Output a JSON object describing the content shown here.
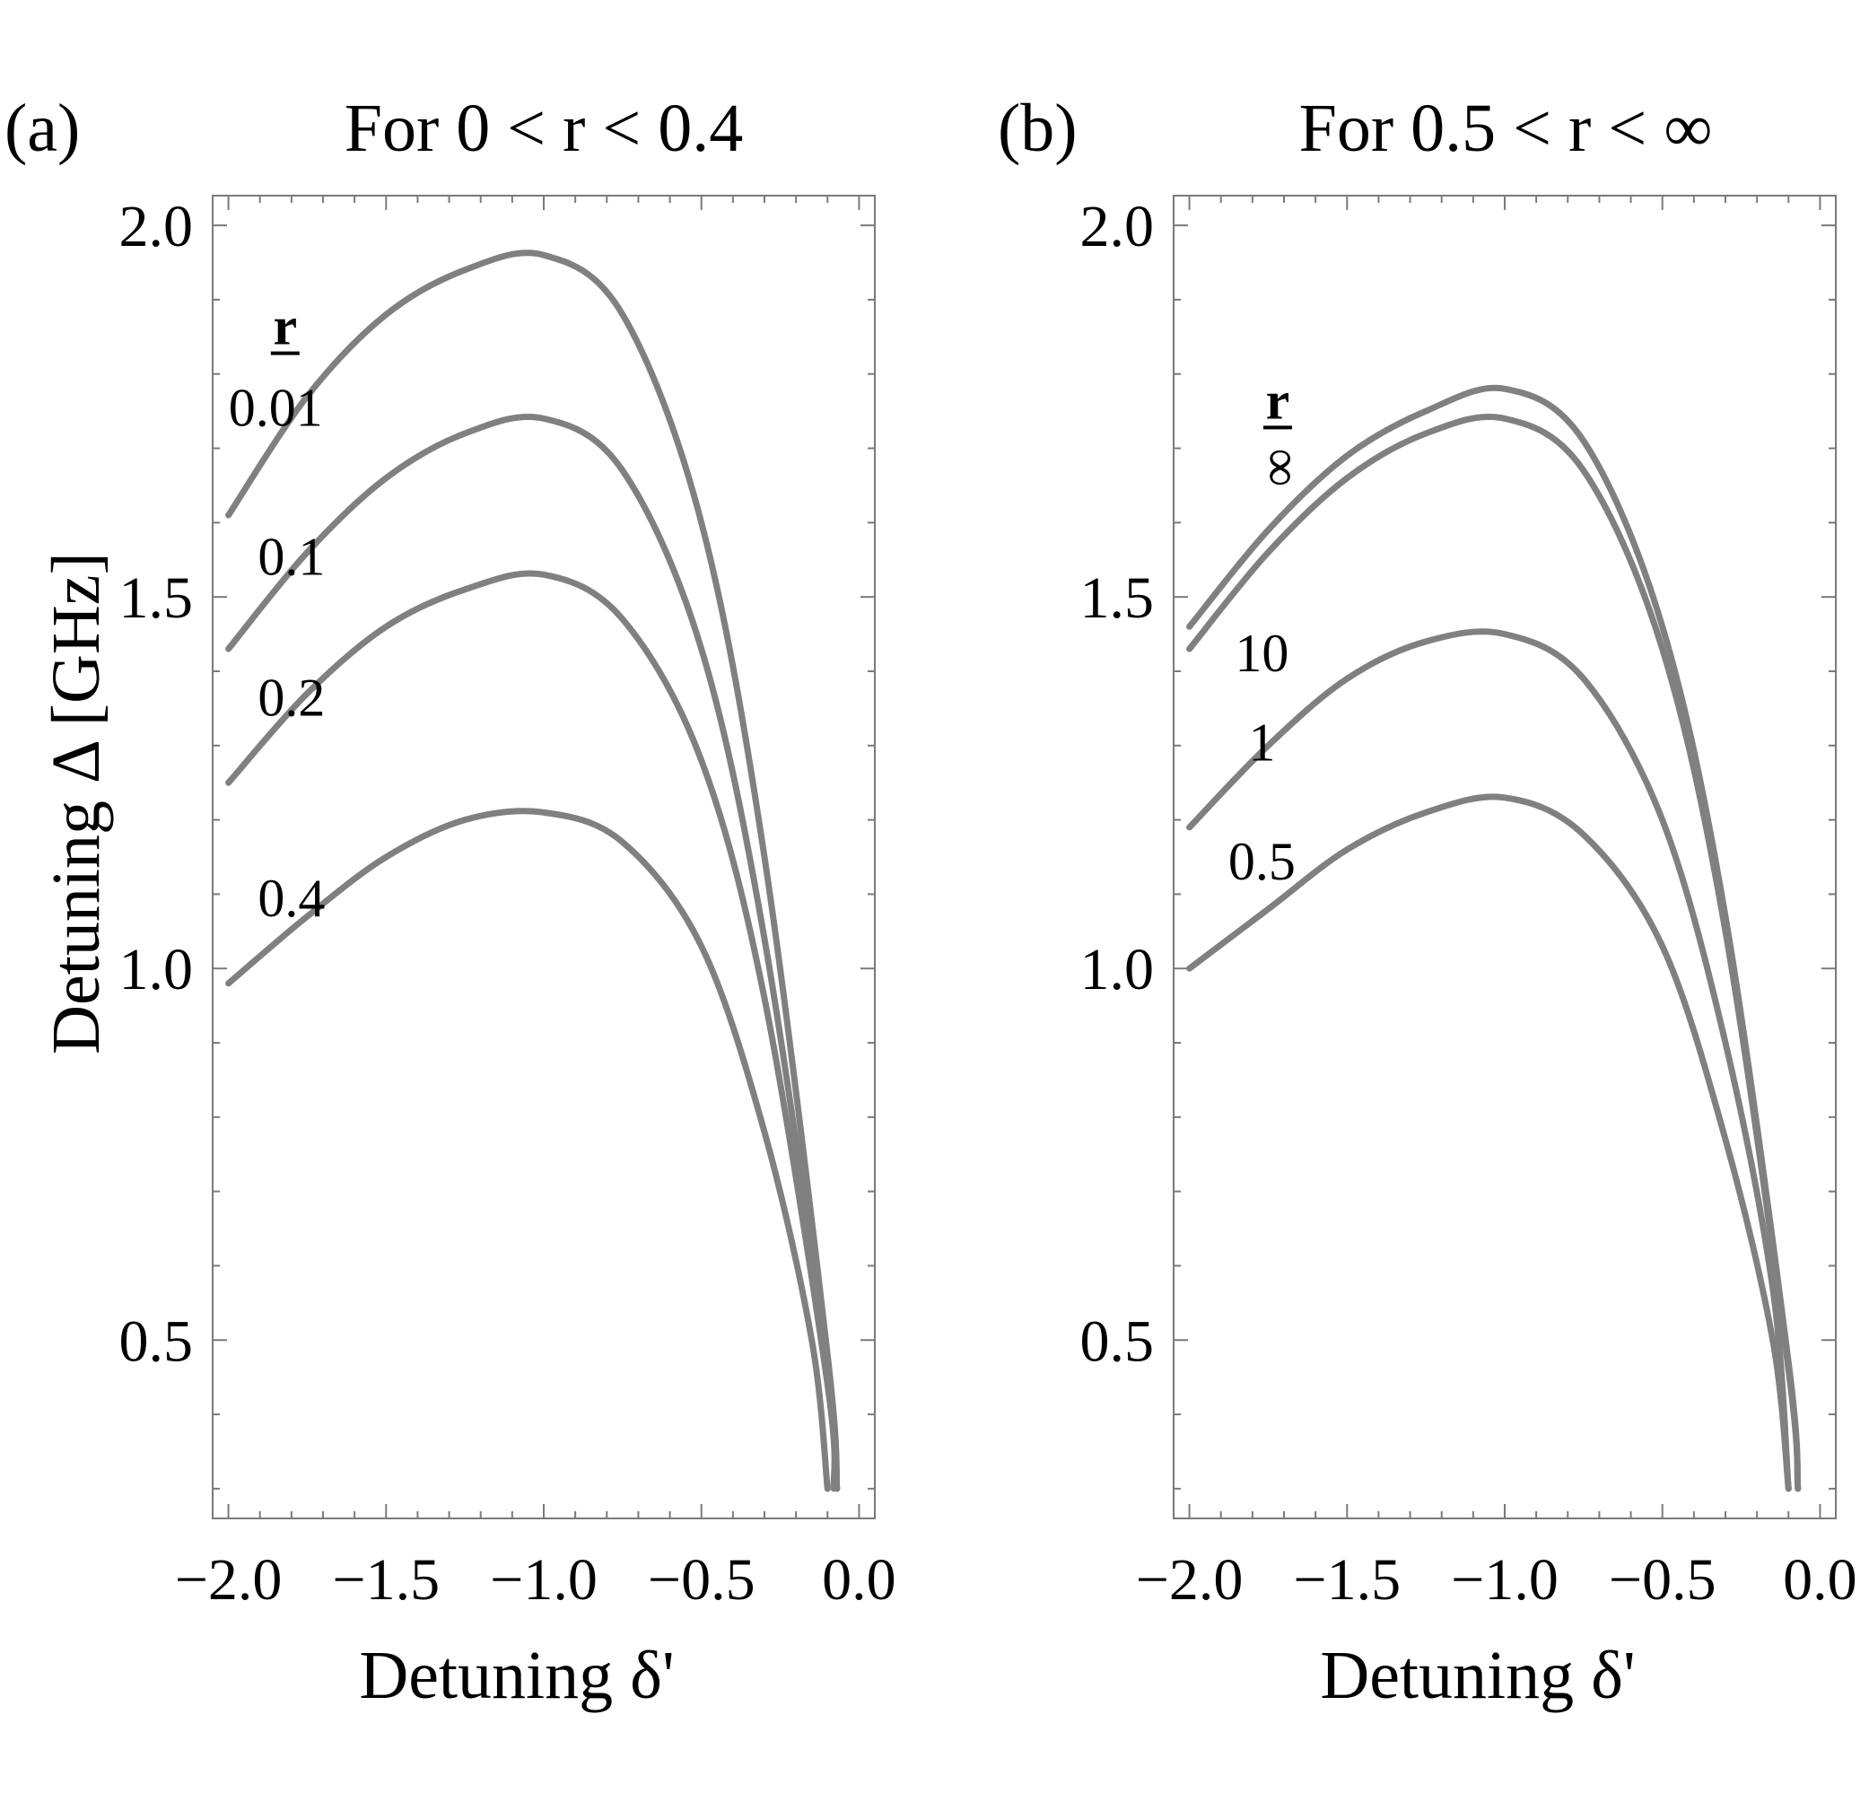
{
  "chart_data": [
    {
      "type": "line",
      "panel_label": "(a)",
      "title": "For 0 < r < 0.4",
      "xlabel": "Detuning δ'",
      "ylabel": "Detuning  Δ [GHz]",
      "xlim": [
        -2.05,
        0.05
      ],
      "ylim": [
        0.26,
        2.04
      ],
      "x_ticks": [
        -2.0,
        -1.5,
        -1.0,
        -0.5,
        0.0
      ],
      "x_tick_labels": [
        "−2.0",
        "−1.5",
        "−1.0",
        "−0.5",
        "0.0"
      ],
      "y_ticks": [
        0.5,
        1.0,
        1.5,
        2.0
      ],
      "y_tick_labels": [
        "0.5",
        "1.0",
        "1.5",
        "2.0"
      ],
      "legend_heading": "r",
      "series": [
        {
          "name": "0.01",
          "color": "#808080",
          "x": [
            -2.0,
            -1.75,
            -1.5,
            -1.25,
            -1.0,
            -0.75,
            -0.5,
            -0.3,
            -0.1,
            -0.07
          ],
          "y": [
            1.61,
            1.77,
            1.88,
            1.94,
            1.96,
            1.88,
            1.6,
            1.15,
            0.48,
            0.3
          ]
        },
        {
          "name": "0.1",
          "color": "#808080",
          "x": [
            -2.0,
            -1.75,
            -1.5,
            -1.25,
            -1.0,
            -0.75,
            -0.5,
            -0.3,
            -0.1,
            -0.07
          ],
          "y": [
            1.43,
            1.56,
            1.66,
            1.72,
            1.74,
            1.67,
            1.43,
            1.04,
            0.46,
            0.3
          ]
        },
        {
          "name": "0.2",
          "color": "#808080",
          "x": [
            -2.0,
            -1.75,
            -1.5,
            -1.25,
            -1.0,
            -0.75,
            -0.5,
            -0.3,
            -0.1,
            -0.08
          ],
          "y": [
            1.25,
            1.37,
            1.46,
            1.51,
            1.53,
            1.47,
            1.28,
            0.96,
            0.44,
            0.3
          ]
        },
        {
          "name": "0.4",
          "color": "#808080",
          "x": [
            -2.0,
            -1.75,
            -1.5,
            -1.25,
            -1.0,
            -0.75,
            -0.5,
            -0.3,
            -0.15,
            -0.1
          ],
          "y": [
            0.98,
            1.07,
            1.15,
            1.2,
            1.21,
            1.17,
            1.03,
            0.78,
            0.5,
            0.3
          ]
        }
      ],
      "curve_labels": [
        {
          "text": "0.01",
          "x": -1.85,
          "y": 1.73
        },
        {
          "text": "0.1",
          "x": -1.8,
          "y": 1.53
        },
        {
          "text": "0.2",
          "x": -1.8,
          "y": 1.34
        },
        {
          "text": "0.4",
          "x": -1.8,
          "y": 1.07
        }
      ],
      "legend_heading_pos": {
        "x": -1.82,
        "y": 1.84
      }
    },
    {
      "type": "line",
      "panel_label": "(b)",
      "title": "For 0.5 < r < ∞",
      "xlabel": "Detuning δ'",
      "ylabel": "",
      "xlim": [
        -2.05,
        0.05
      ],
      "ylim": [
        0.26,
        2.04
      ],
      "x_ticks": [
        -2.0,
        -1.5,
        -1.0,
        -0.5,
        0.0
      ],
      "x_tick_labels": [
        "−2.0",
        "−1.5",
        "−1.0",
        "−0.5",
        "0.0"
      ],
      "y_ticks": [
        0.5,
        1.0,
        1.5,
        2.0
      ],
      "y_tick_labels": [
        "0.5",
        "1.0",
        "1.5",
        "2.0"
      ],
      "legend_heading": "r",
      "series": [
        {
          "name": "∞",
          "color": "#808080",
          "x": [
            -2.0,
            -1.75,
            -1.5,
            -1.25,
            -1.0,
            -0.75,
            -0.5,
            -0.3,
            -0.1,
            -0.07
          ],
          "y": [
            1.46,
            1.59,
            1.69,
            1.75,
            1.78,
            1.71,
            1.46,
            1.07,
            0.47,
            0.3
          ]
        },
        {
          "name": "10",
          "color": "#808080",
          "x": [
            -2.0,
            -1.75,
            -1.5,
            -1.25,
            -1.0,
            -0.75,
            -0.5,
            -0.3,
            -0.1,
            -0.07
          ],
          "y": [
            1.43,
            1.56,
            1.66,
            1.72,
            1.74,
            1.67,
            1.43,
            1.05,
            0.46,
            0.3
          ]
        },
        {
          "name": "1",
          "color": "#808080",
          "x": [
            -2.0,
            -1.75,
            -1.5,
            -1.25,
            -1.0,
            -0.75,
            -0.5,
            -0.3,
            -0.15,
            -0.1
          ],
          "y": [
            1.19,
            1.3,
            1.39,
            1.44,
            1.45,
            1.39,
            1.2,
            0.9,
            0.57,
            0.3
          ]
        },
        {
          "name": "0.5",
          "color": "#808080",
          "x": [
            -2.0,
            -1.75,
            -1.5,
            -1.25,
            -1.0,
            -0.75,
            -0.5,
            -0.3,
            -0.15,
            -0.1
          ],
          "y": [
            1.0,
            1.08,
            1.16,
            1.21,
            1.23,
            1.18,
            1.03,
            0.77,
            0.5,
            0.3
          ]
        }
      ],
      "curve_labels": [
        {
          "text": "∞",
          "x": -1.72,
          "y": 1.65,
          "rotate": -90
        },
        {
          "text": "10",
          "x": -1.77,
          "y": 1.4
        },
        {
          "text": "1",
          "x": -1.77,
          "y": 1.28
        },
        {
          "text": "0.5",
          "x": -1.77,
          "y": 1.12
        }
      ],
      "legend_heading_pos": {
        "x": -1.72,
        "y": 1.74
      }
    }
  ]
}
